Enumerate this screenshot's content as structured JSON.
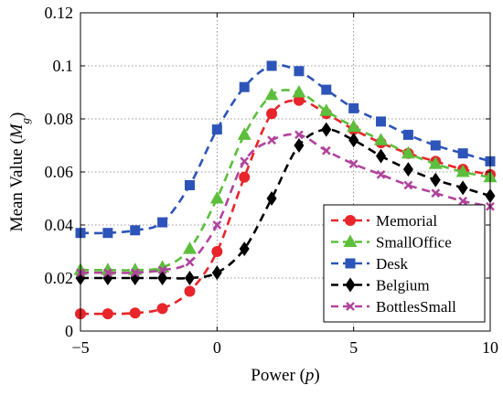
{
  "chart_data": {
    "type": "line",
    "xlabel": "Power (p)",
    "ylabel": "Mean Value (M_g)",
    "xlim": [
      -5,
      10
    ],
    "ylim": [
      0,
      0.12
    ],
    "xticks": [
      -5,
      0,
      5,
      10
    ],
    "xtick_labels": [
      "−5",
      "0",
      "5",
      "10"
    ],
    "yticks": [
      0,
      0.02,
      0.04,
      0.06,
      0.08,
      0.1,
      0.12
    ],
    "ytick_labels": [
      "0",
      "0.02",
      "0.04",
      "0.06",
      "0.08",
      "0.1",
      "0.12"
    ],
    "grid": true,
    "legend_position": "bottom-right",
    "x": [
      -5,
      -4,
      -3,
      -2,
      -1,
      0,
      1,
      2,
      3,
      4,
      5,
      6,
      7,
      8,
      9,
      10
    ],
    "series": [
      {
        "name": "Memorial",
        "color": "#e8252a",
        "marker": "circle",
        "values": [
          0.0065,
          0.0065,
          0.0068,
          0.0085,
          0.015,
          0.03,
          0.058,
          0.082,
          0.087,
          0.082,
          0.076,
          0.071,
          0.067,
          0.064,
          0.061,
          0.059
        ]
      },
      {
        "name": "SmallOffice",
        "color": "#5cbf3c",
        "marker": "triangle",
        "values": [
          0.023,
          0.023,
          0.023,
          0.024,
          0.031,
          0.05,
          0.074,
          0.089,
          0.09,
          0.083,
          0.077,
          0.072,
          0.067,
          0.063,
          0.06,
          0.058
        ]
      },
      {
        "name": "Desk",
        "color": "#2d54b8",
        "marker": "square",
        "values": [
          0.037,
          0.037,
          0.038,
          0.041,
          0.055,
          0.076,
          0.092,
          0.1,
          0.098,
          0.091,
          0.084,
          0.079,
          0.074,
          0.07,
          0.067,
          0.064
        ]
      },
      {
        "name": "Belgium",
        "color": "#000000",
        "marker": "diamond",
        "values": [
          0.02,
          0.02,
          0.02,
          0.02,
          0.02,
          0.022,
          0.031,
          0.05,
          0.07,
          0.076,
          0.072,
          0.066,
          0.061,
          0.057,
          0.054,
          0.051
        ]
      },
      {
        "name": "BottlesSmall",
        "color": "#b0449c",
        "marker": "x",
        "values": [
          0.022,
          0.022,
          0.022,
          0.023,
          0.026,
          0.04,
          0.064,
          0.072,
          0.074,
          0.068,
          0.063,
          0.059,
          0.055,
          0.052,
          0.049,
          0.047
        ]
      }
    ]
  }
}
